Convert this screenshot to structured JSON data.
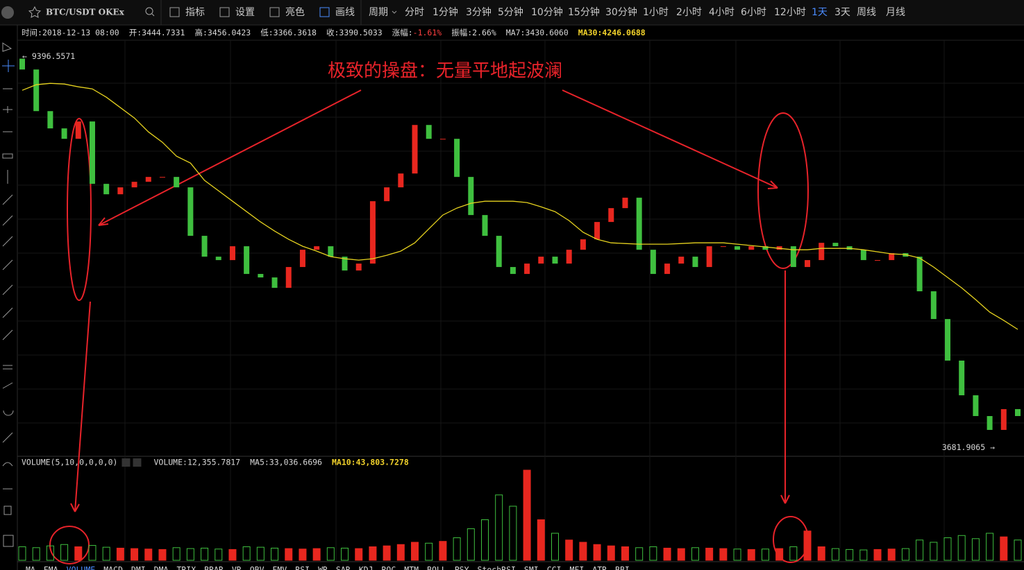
{
  "toolbar": {
    "symbol": "BTC/USDT OKEx",
    "buttons": [
      "指标",
      "设置",
      "亮色",
      "画线"
    ],
    "period_label": "周期",
    "periods": [
      "分时",
      "1分钟",
      "3分钟",
      "5分钟",
      "10分钟",
      "15分钟",
      "30分钟",
      "1小时",
      "2小时",
      "4小时",
      "6小时",
      "12小时",
      "1天",
      "3天",
      "周线",
      "月线"
    ],
    "active_period": "1天"
  },
  "info": [
    {
      "label": "时间:",
      "value": "2018-12-13 08:00"
    },
    {
      "label": "开:",
      "value": "3444.7331"
    },
    {
      "label": "高:",
      "value": "3456.0423"
    },
    {
      "label": "低:",
      "value": "3366.3618"
    },
    {
      "label": "收:",
      "value": "3390.5033"
    },
    {
      "label": "涨幅:",
      "value": "-1.61%"
    },
    {
      "label": "振幅:",
      "value": "2.66%"
    },
    {
      "label": "MA7:",
      "value": "3430.6060"
    },
    {
      "label": "MA30:",
      "value": "4246.0688"
    }
  ],
  "annotation": "极致的操盘：无量平地起波澜",
  "volume_header": [
    "VOLUME(5,10,0,0,0,0)",
    "VOLUME:12,355.7817",
    "MA5:33,036.6696",
    "MA10:43,803.7278"
  ],
  "indicator_tabs": [
    "MA",
    "EMA",
    "VOLUME",
    "MACD",
    "DMI",
    "DMA",
    "TRIX",
    "BRAR",
    "VR",
    "OBV",
    "EMV",
    "RSI",
    "WR",
    "SAR",
    "KDJ",
    "ROC",
    "MTM",
    "BOLL",
    "PSY",
    "StochRSI",
    "SMI",
    "CCI",
    "MFI",
    "ATR",
    "BBI"
  ],
  "chart_data": {
    "type": "candlestick",
    "max_marker": 9396.5571,
    "min_marker": 3681.9065,
    "up_color": "#e8271f",
    "down_color": "#3fbf3f",
    "ma30_color": "#e6d21f",
    "open": [
      9350,
      9192,
      8585,
      8333,
      8181,
      8434,
      7524,
      7372,
      7473,
      7554,
      7625,
      7625,
      7473,
      6766,
      6462,
      6412,
      6614,
      6210,
      6159,
      6007,
      6311,
      6563,
      6614,
      6462,
      6260,
      6361,
      7271,
      7473,
      7675,
      8383,
      8181,
      8181,
      7625,
      7069,
      6766,
      6311,
      6210,
      6361,
      6462,
      6361,
      6563,
      6715,
      6968,
      7170,
      7322,
      6563,
      6210,
      6361,
      6462,
      6311,
      6614,
      6614,
      6563,
      6614,
      6563,
      6614,
      6311,
      6412,
      6664,
      6614,
      6563,
      6412,
      6412,
      6513,
      6462,
      5957,
      5552,
      4946,
      4440,
      4137,
      3935,
      4238
    ],
    "close": [
      9192,
      8585,
      8333,
      8181,
      8434,
      7524,
      7372,
      7473,
      7554,
      7625,
      7625,
      7473,
      6766,
      6462,
      6412,
      6614,
      6210,
      6159,
      6007,
      6311,
      6563,
      6614,
      6462,
      6260,
      6361,
      7271,
      7473,
      7675,
      8383,
      8181,
      8181,
      7625,
      7069,
      6766,
      6311,
      6210,
      6361,
      6462,
      6361,
      6563,
      6715,
      6968,
      7170,
      7322,
      6563,
      6210,
      6361,
      6462,
      6311,
      6614,
      6614,
      6563,
      6614,
      6563,
      6614,
      6311,
      6412,
      6664,
      6614,
      6563,
      6412,
      6412,
      6513,
      6462,
      5957,
      5552,
      4946,
      4440,
      4137,
      3935,
      4238,
      4137
    ],
    "ma30": [
      8889,
      8970,
      8990,
      8980,
      8939,
      8909,
      8788,
      8636,
      8484,
      8282,
      8130,
      7928,
      7827,
      7574,
      7423,
      7271,
      7119,
      6968,
      6836,
      6715,
      6614,
      6543,
      6462,
      6432,
      6412,
      6432,
      6483,
      6543,
      6664,
      6867,
      7069,
      7170,
      7241,
      7271,
      7271,
      7271,
      7251,
      7190,
      7119,
      6988,
      6817,
      6715,
      6664,
      6654,
      6644,
      6644,
      6644,
      6654,
      6664,
      6664,
      6664,
      6644,
      6624,
      6604,
      6583,
      6563,
      6563,
      6583,
      6583,
      6583,
      6563,
      6533,
      6503,
      6493,
      6442,
      6311,
      6159,
      6007,
      5835,
      5653,
      5532,
      5401
    ],
    "volume": [
      30000,
      28000,
      32000,
      35000,
      30000,
      33000,
      29000,
      27000,
      26000,
      25000,
      24000,
      28000,
      26000,
      27000,
      25000,
      24000,
      30000,
      29000,
      27000,
      26000,
      25000,
      26000,
      28000,
      27000,
      26000,
      30000,
      32000,
      35000,
      40000,
      38000,
      42000,
      50000,
      70000,
      90000,
      145000,
      120000,
      200000,
      90000,
      60000,
      45000,
      40000,
      35000,
      32000,
      30000,
      28000,
      30000,
      27000,
      26000,
      28000,
      27000,
      26000,
      25000,
      24000,
      25000,
      26000,
      30000,
      65000,
      30000,
      26000,
      24000,
      23000,
      24000,
      25000,
      26000,
      45000,
      40000,
      50000,
      55000,
      48000,
      60000,
      52000,
      45000
    ]
  }
}
